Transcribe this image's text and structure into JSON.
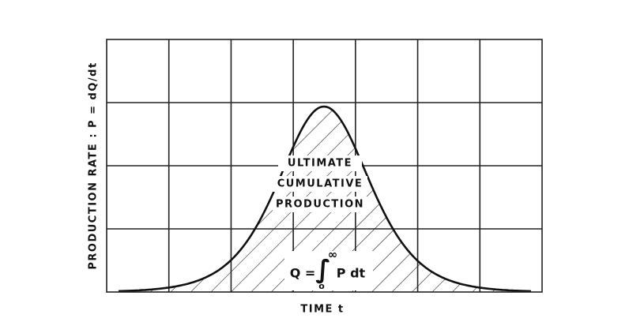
{
  "y_axis_label": "PRODUCTION RATE : P = dQ/dt",
  "x_axis_label": "TIME  t",
  "area_label": [
    "ULTIMATE",
    "CUMULATIVE",
    "PRODUCTION"
  ],
  "formula": {
    "lhs": "Q =",
    "sign": "∫",
    "upper": "∞",
    "lower": "o",
    "integrand": "P dt"
  }
}
